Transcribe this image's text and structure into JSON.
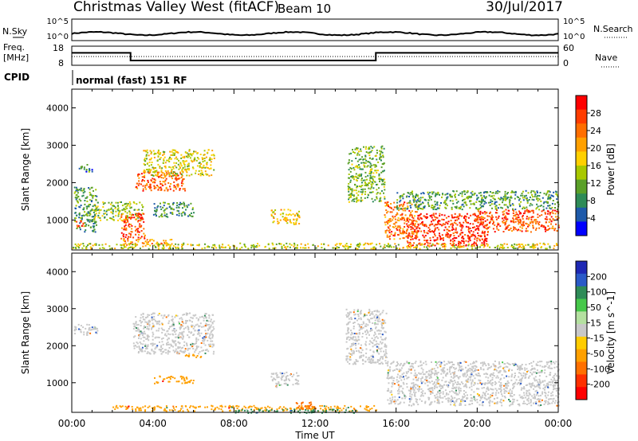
{
  "header": {
    "site": "Christmas Valley West (fitACF)",
    "beam": "Beam 10",
    "date": "30/Jul/2017"
  },
  "top_panels": {
    "nsky_label": "N.Sky",
    "nsky_ticks": [
      "10^5",
      "10^0"
    ],
    "nsearch_label": "N.Search",
    "nsearch_ticks": [
      "10^5",
      "10^0"
    ],
    "freq_label": "Freq.",
    "freq_unit": "[MHz]",
    "freq_ticks": [
      "18",
      "8"
    ],
    "nave_label": "Nave",
    "nave_ticks": [
      "60",
      "0"
    ],
    "cpid_label": "CPID",
    "cpid_text": "normal (fast) 151 RF"
  },
  "axes": {
    "ylabel": "Slant Range [km]",
    "xlabel": "Time UT",
    "yticks": [
      "4000",
      "3000",
      "2000",
      "1000"
    ],
    "xticks": [
      "00:00",
      "04:00",
      "08:00",
      "12:00",
      "16:00",
      "20:00",
      "00:00"
    ]
  },
  "power_scale": {
    "label": "Power [dB]",
    "ticks": [
      "28",
      "24",
      "20",
      "16",
      "12",
      "8",
      "4"
    ],
    "colors": [
      "#ff0000",
      "#ff3c00",
      "#ff6e00",
      "#ffa000",
      "#ffd000",
      "#a8c800",
      "#5aa028",
      "#2e8b57",
      "#1e5aaa",
      "#0000ff"
    ]
  },
  "velocity_scale": {
    "label": "Velocity [m s^-1]",
    "ticks": [
      "200",
      "100",
      "50",
      "15",
      "-15",
      "-50",
      "-100",
      "-200"
    ],
    "colors": [
      "#1e28b4",
      "#2a5ac8",
      "#2e8b57",
      "#46c84a",
      "#b4e0a0",
      "#c8c8c8",
      "#ffcc00",
      "#ffa000",
      "#ff7000",
      "#ff3000",
      "#ff0000"
    ]
  },
  "chart_data": {
    "type": "heatmap",
    "x_unit": "hours UT",
    "xlim": [
      0,
      24
    ],
    "ylim": [
      200,
      4500
    ],
    "freq_steps": [
      {
        "t": 0,
        "freq_mhz": 14.5
      },
      {
        "t": 2.9,
        "freq_mhz": 10.5
      },
      {
        "t": 15,
        "freq_mhz": 14.5
      },
      {
        "t": 24,
        "freq_mhz": 14.5
      }
    ],
    "power_echoes": [
      {
        "t0": 0.1,
        "t1": 1.2,
        "r0": 700,
        "r1": 1900,
        "db": 10
      },
      {
        "t0": 0.2,
        "t1": 0.6,
        "r0": 800,
        "r1": 1000,
        "db": 26
      },
      {
        "t0": 0.3,
        "t1": 1.0,
        "r0": 2300,
        "r1": 2500,
        "db": 9
      },
      {
        "t0": 1.0,
        "t1": 3.5,
        "r0": 1000,
        "r1": 1500,
        "db": 14
      },
      {
        "t0": 2.4,
        "t1": 3.6,
        "r0": 500,
        "r1": 1200,
        "db": 26
      },
      {
        "t0": 3.1,
        "t1": 5.6,
        "r0": 1800,
        "r1": 2300,
        "db": 25
      },
      {
        "t0": 3.5,
        "t1": 7.0,
        "r0": 2200,
        "r1": 2900,
        "db": 17
      },
      {
        "t0": 4.0,
        "t1": 6.0,
        "r0": 1100,
        "r1": 1500,
        "db": 10
      },
      {
        "t0": 2.5,
        "t1": 5.0,
        "r0": 350,
        "r1": 500,
        "db": 22
      },
      {
        "t0": 9.8,
        "t1": 11.2,
        "r0": 900,
        "r1": 1300,
        "db": 18
      },
      {
        "t0": 13.6,
        "t1": 15.4,
        "r0": 1500,
        "r1": 3000,
        "db": 13
      },
      {
        "t0": 15.4,
        "t1": 17.0,
        "r0": 500,
        "r1": 1500,
        "db": 24
      },
      {
        "t0": 16.5,
        "t1": 20.5,
        "r0": 300,
        "r1": 1200,
        "db": 28
      },
      {
        "t0": 20.0,
        "t1": 24.0,
        "r0": 700,
        "r1": 1300,
        "db": 26
      },
      {
        "t0": 16.0,
        "t1": 24.0,
        "r0": 1300,
        "r1": 1800,
        "db": 11
      },
      {
        "t0": 0.0,
        "t1": 24.0,
        "r0": 250,
        "r1": 400,
        "db": 16
      }
    ],
    "velocity_echoes": [
      {
        "t0": 0.1,
        "t1": 1.3,
        "r0": 2300,
        "r1": 2600,
        "v": 0
      },
      {
        "t0": 3.0,
        "t1": 7.0,
        "r0": 1800,
        "r1": 2900,
        "v": 0
      },
      {
        "t0": 9.8,
        "t1": 11.2,
        "r0": 900,
        "r1": 1300,
        "v": 0
      },
      {
        "t0": 13.5,
        "t1": 15.5,
        "r0": 1500,
        "r1": 3000,
        "v": 0
      },
      {
        "t0": 15.5,
        "t1": 24.0,
        "r0": 400,
        "r1": 1600,
        "v": 0
      },
      {
        "t0": 4.0,
        "t1": 6.0,
        "r0": 1000,
        "r1": 1200,
        "v": -60
      },
      {
        "t0": 5.5,
        "t1": 6.5,
        "r0": 1700,
        "r1": 1800,
        "v": -60
      },
      {
        "t0": 2.0,
        "t1": 15.0,
        "r0": 250,
        "r1": 400,
        "v": -40
      },
      {
        "t0": 8.0,
        "t1": 14.0,
        "r0": 200,
        "r1": 300,
        "v": 40
      },
      {
        "t0": 11.0,
        "t1": 12.0,
        "r0": 300,
        "r1": 500,
        "v": -90
      }
    ]
  }
}
